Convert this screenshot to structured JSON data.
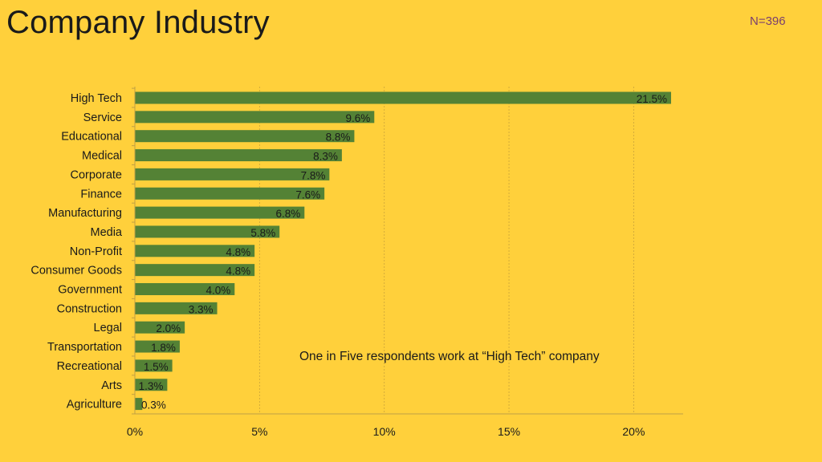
{
  "slide": {
    "title": "Company Industry",
    "sample_size": "N=396",
    "annotation": "One in Five respondents work at “High Tech” company"
  },
  "colors": {
    "background": "#ffd03b",
    "bar": "#548235",
    "text": "#1a1a1a",
    "sample_size": "#7a3f6f"
  },
  "chart_data": {
    "type": "bar",
    "orientation": "horizontal",
    "title": "Company Industry",
    "xlabel": "",
    "ylabel": "",
    "xlim": [
      0,
      22
    ],
    "x_ticks": [
      0,
      5,
      10,
      15,
      20
    ],
    "x_tick_labels": [
      "0%",
      "5%",
      "10%",
      "15%",
      "20%"
    ],
    "grid": "vertical dashed",
    "categories": [
      "High Tech",
      "Service",
      "Educational",
      "Medical",
      "Corporate",
      "Finance",
      "Manufacturing",
      "Media",
      "Non-Profit",
      "Consumer Goods",
      "Government",
      "Construction",
      "Legal",
      "Transportation",
      "Recreational",
      "Arts",
      "Agriculture"
    ],
    "values": [
      21.5,
      9.6,
      8.8,
      8.3,
      7.8,
      7.6,
      6.8,
      5.8,
      4.8,
      4.8,
      4.0,
      3.3,
      2.0,
      1.8,
      1.5,
      1.3,
      0.3
    ],
    "value_labels": [
      "21.5%",
      "9.6%",
      "8.8%",
      "8.3%",
      "7.8%",
      "7.6%",
      "6.8%",
      "5.8%",
      "4.8%",
      "4.8%",
      "4.0%",
      "3.3%",
      "2.0%",
      "1.8%",
      "1.5%",
      "1.3%",
      "0.3%"
    ]
  }
}
